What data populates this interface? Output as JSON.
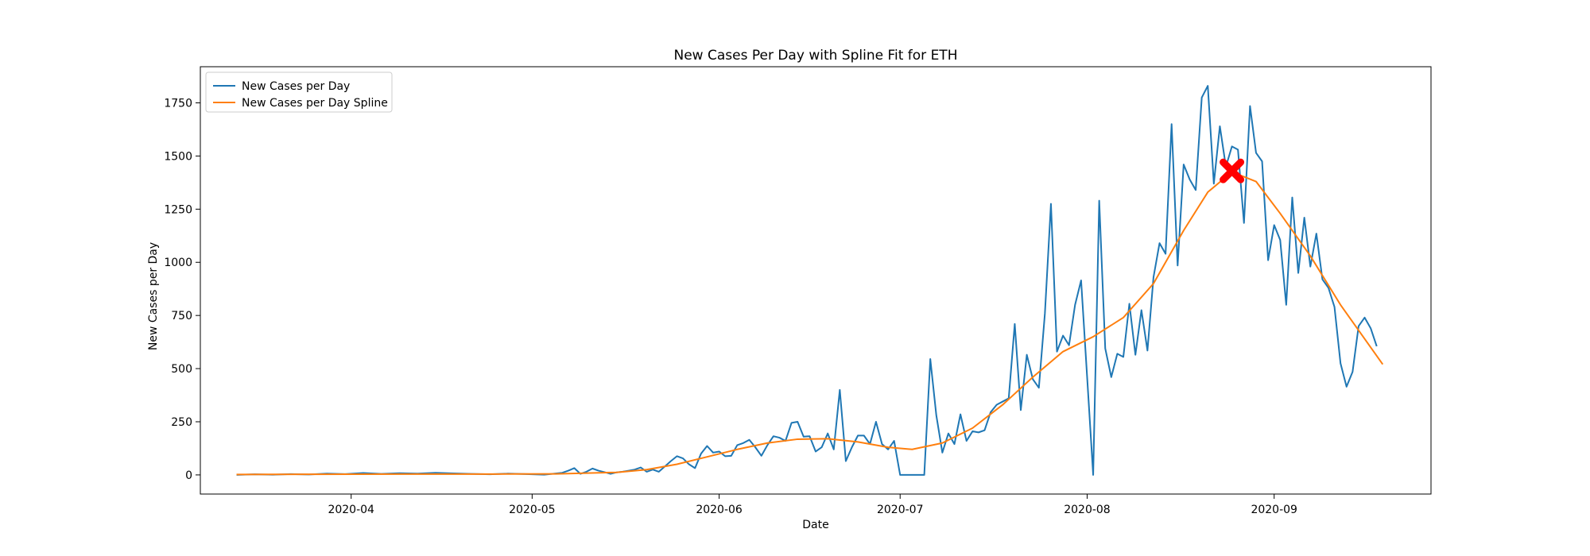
{
  "chart_data": {
    "type": "line",
    "title": "New Cases Per Day with Spline Fit for ETH",
    "xlabel": "Date",
    "ylabel": "New Cases per Day",
    "xlim": [
      "2020-03-07",
      "2020-09-27"
    ],
    "ylim": [
      -90,
      1920
    ],
    "x_ticks": [
      "2020-04-01",
      "2020-05-01",
      "2020-06-01",
      "2020-07-01",
      "2020-08-01",
      "2020-09-01"
    ],
    "x_tick_labels": [
      "2020-04",
      "2020-05",
      "2020-06",
      "2020-07",
      "2020-08",
      "2020-09"
    ],
    "y_ticks": [
      0,
      250,
      500,
      750,
      1000,
      1250,
      1500,
      1750
    ],
    "y_tick_labels": [
      "0",
      "250",
      "500",
      "750",
      "1000",
      "1250",
      "1500",
      "1750"
    ],
    "grid": false,
    "legend_position": "top-left",
    "series": [
      {
        "name": "New Cases per Day",
        "color": "#1f77b4",
        "points": [
          [
            "2020-03-13",
            0
          ],
          [
            "2020-03-16",
            3
          ],
          [
            "2020-03-19",
            1
          ],
          [
            "2020-03-22",
            4
          ],
          [
            "2020-03-25",
            2
          ],
          [
            "2020-03-28",
            6
          ],
          [
            "2020-03-31",
            4
          ],
          [
            "2020-04-03",
            9
          ],
          [
            "2020-04-06",
            5
          ],
          [
            "2020-04-09",
            8
          ],
          [
            "2020-04-12",
            6
          ],
          [
            "2020-04-15",
            10
          ],
          [
            "2020-04-18",
            7
          ],
          [
            "2020-04-21",
            5
          ],
          [
            "2020-04-24",
            3
          ],
          [
            "2020-04-27",
            6
          ],
          [
            "2020-04-30",
            4
          ],
          [
            "2020-05-03",
            1
          ],
          [
            "2020-05-06",
            10
          ],
          [
            "2020-05-07",
            20
          ],
          [
            "2020-05-08",
            32
          ],
          [
            "2020-05-09",
            5
          ],
          [
            "2020-05-10",
            15
          ],
          [
            "2020-05-11",
            30
          ],
          [
            "2020-05-12",
            20
          ],
          [
            "2020-05-13",
            13
          ],
          [
            "2020-05-14",
            5
          ],
          [
            "2020-05-15",
            12
          ],
          [
            "2020-05-16",
            15
          ],
          [
            "2020-05-17",
            20
          ],
          [
            "2020-05-18",
            25
          ],
          [
            "2020-05-19",
            35
          ],
          [
            "2020-05-20",
            15
          ],
          [
            "2020-05-21",
            25
          ],
          [
            "2020-05-22",
            15
          ],
          [
            "2020-05-23",
            40
          ],
          [
            "2020-05-24",
            65
          ],
          [
            "2020-05-25",
            88
          ],
          [
            "2020-05-26",
            78
          ],
          [
            "2020-05-27",
            50
          ],
          [
            "2020-05-28",
            32
          ],
          [
            "2020-05-29",
            100
          ],
          [
            "2020-05-30",
            136
          ],
          [
            "2020-05-31",
            105
          ],
          [
            "2020-06-01",
            110
          ],
          [
            "2020-06-02",
            88
          ],
          [
            "2020-06-03",
            90
          ],
          [
            "2020-06-04",
            140
          ],
          [
            "2020-06-05",
            150
          ],
          [
            "2020-06-06",
            165
          ],
          [
            "2020-06-07",
            130
          ],
          [
            "2020-06-08",
            90
          ],
          [
            "2020-06-09",
            140
          ],
          [
            "2020-06-10",
            182
          ],
          [
            "2020-06-11",
            175
          ],
          [
            "2020-06-12",
            160
          ],
          [
            "2020-06-13",
            245
          ],
          [
            "2020-06-14",
            250
          ],
          [
            "2020-06-15",
            180
          ],
          [
            "2020-06-16",
            182
          ],
          [
            "2020-06-17",
            110
          ],
          [
            "2020-06-18",
            130
          ],
          [
            "2020-06-19",
            195
          ],
          [
            "2020-06-20",
            120
          ],
          [
            "2020-06-21",
            400
          ],
          [
            "2020-06-22",
            65
          ],
          [
            "2020-06-23",
            130
          ],
          [
            "2020-06-24",
            185
          ],
          [
            "2020-06-25",
            185
          ],
          [
            "2020-06-26",
            145
          ],
          [
            "2020-06-27",
            250
          ],
          [
            "2020-06-28",
            145
          ],
          [
            "2020-06-29",
            120
          ],
          [
            "2020-06-30",
            160
          ],
          [
            "2020-07-01",
            0
          ],
          [
            "2020-07-02",
            0
          ],
          [
            "2020-07-03",
            0
          ],
          [
            "2020-07-04",
            0
          ],
          [
            "2020-07-05",
            0
          ],
          [
            "2020-07-06",
            545
          ],
          [
            "2020-07-07",
            280
          ],
          [
            "2020-07-08",
            105
          ],
          [
            "2020-07-09",
            195
          ],
          [
            "2020-07-10",
            145
          ],
          [
            "2020-07-11",
            285
          ],
          [
            "2020-07-12",
            160
          ],
          [
            "2020-07-13",
            205
          ],
          [
            "2020-07-14",
            200
          ],
          [
            "2020-07-15",
            210
          ],
          [
            "2020-07-16",
            295
          ],
          [
            "2020-07-17",
            330
          ],
          [
            "2020-07-18",
            345
          ],
          [
            "2020-07-19",
            360
          ],
          [
            "2020-07-20",
            710
          ],
          [
            "2020-07-21",
            305
          ],
          [
            "2020-07-22",
            565
          ],
          [
            "2020-07-23",
            450
          ],
          [
            "2020-07-24",
            410
          ],
          [
            "2020-07-25",
            760
          ],
          [
            "2020-07-26",
            1275
          ],
          [
            "2020-07-27",
            580
          ],
          [
            "2020-07-28",
            655
          ],
          [
            "2020-07-29",
            610
          ],
          [
            "2020-07-30",
            800
          ],
          [
            "2020-07-31",
            915
          ],
          [
            "2020-08-01",
            460
          ],
          [
            "2020-08-02",
            0
          ],
          [
            "2020-08-03",
            1290
          ],
          [
            "2020-08-04",
            595
          ],
          [
            "2020-08-05",
            460
          ],
          [
            "2020-08-06",
            570
          ],
          [
            "2020-08-07",
            555
          ],
          [
            "2020-08-08",
            805
          ],
          [
            "2020-08-09",
            565
          ],
          [
            "2020-08-10",
            775
          ],
          [
            "2020-08-11",
            585
          ],
          [
            "2020-08-12",
            930
          ],
          [
            "2020-08-13",
            1090
          ],
          [
            "2020-08-14",
            1040
          ],
          [
            "2020-08-15",
            1650
          ],
          [
            "2020-08-16",
            985
          ],
          [
            "2020-08-17",
            1460
          ],
          [
            "2020-08-18",
            1390
          ],
          [
            "2020-08-19",
            1340
          ],
          [
            "2020-08-20",
            1775
          ],
          [
            "2020-08-21",
            1830
          ],
          [
            "2020-08-22",
            1370
          ],
          [
            "2020-08-23",
            1640
          ],
          [
            "2020-08-24",
            1450
          ],
          [
            "2020-08-25",
            1545
          ],
          [
            "2020-08-26",
            1530
          ],
          [
            "2020-08-27",
            1185
          ],
          [
            "2020-08-28",
            1735
          ],
          [
            "2020-08-29",
            1515
          ],
          [
            "2020-08-30",
            1475
          ],
          [
            "2020-08-31",
            1010
          ],
          [
            "2020-09-01",
            1175
          ],
          [
            "2020-09-02",
            1105
          ],
          [
            "2020-09-03",
            800
          ],
          [
            "2020-09-04",
            1305
          ],
          [
            "2020-09-05",
            950
          ],
          [
            "2020-09-06",
            1210
          ],
          [
            "2020-09-07",
            980
          ],
          [
            "2020-09-08",
            1135
          ],
          [
            "2020-09-09",
            920
          ],
          [
            "2020-09-10",
            880
          ],
          [
            "2020-09-11",
            790
          ],
          [
            "2020-09-12",
            525
          ],
          [
            "2020-09-13",
            415
          ],
          [
            "2020-09-14",
            485
          ],
          [
            "2020-09-15",
            700
          ],
          [
            "2020-09-16",
            740
          ],
          [
            "2020-09-17",
            690
          ],
          [
            "2020-09-18",
            605
          ]
        ]
      },
      {
        "name": "New Cases per Day Spline",
        "color": "#ff7f0e",
        "points": [
          [
            "2020-03-13",
            2
          ],
          [
            "2020-03-25",
            3
          ],
          [
            "2020-04-10",
            4
          ],
          [
            "2020-04-25",
            4
          ],
          [
            "2020-05-05",
            5
          ],
          [
            "2020-05-15",
            12
          ],
          [
            "2020-05-20",
            25
          ],
          [
            "2020-05-25",
            50
          ],
          [
            "2020-05-30",
            85
          ],
          [
            "2020-06-04",
            120
          ],
          [
            "2020-06-09",
            150
          ],
          [
            "2020-06-14",
            168
          ],
          [
            "2020-06-19",
            170
          ],
          [
            "2020-06-24",
            155
          ],
          [
            "2020-06-29",
            130
          ],
          [
            "2020-07-03",
            120
          ],
          [
            "2020-07-08",
            150
          ],
          [
            "2020-07-13",
            220
          ],
          [
            "2020-07-18",
            330
          ],
          [
            "2020-07-23",
            460
          ],
          [
            "2020-07-28",
            580
          ],
          [
            "2020-08-02",
            650
          ],
          [
            "2020-08-07",
            740
          ],
          [
            "2020-08-12",
            900
          ],
          [
            "2020-08-17",
            1150
          ],
          [
            "2020-08-21",
            1330
          ],
          [
            "2020-08-25",
            1425
          ],
          [
            "2020-08-29",
            1380
          ],
          [
            "2020-09-02",
            1230
          ],
          [
            "2020-09-07",
            1030
          ],
          [
            "2020-09-12",
            800
          ],
          [
            "2020-09-19",
            520
          ]
        ]
      }
    ],
    "annotations": [
      {
        "type": "marker",
        "symbol": "X",
        "color": "#ff0000",
        "x": "2020-08-25",
        "y": 1430
      }
    ]
  }
}
